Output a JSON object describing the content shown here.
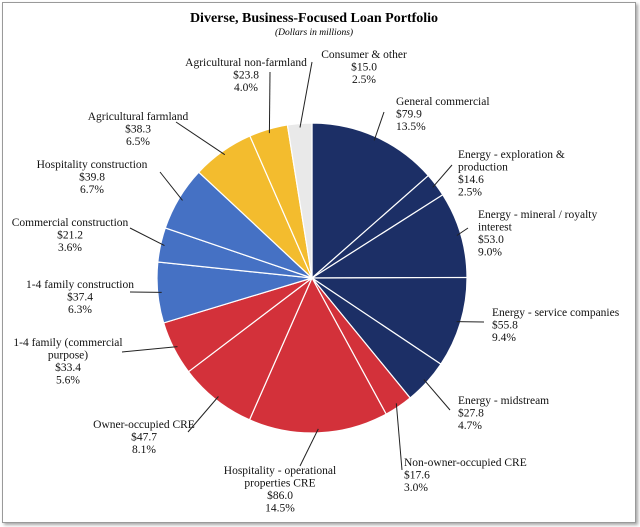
{
  "chart_data": {
    "type": "pie",
    "title": "Diverse, Business-Focused Loan Portfolio",
    "subtitle": "(Dollars in millions)",
    "slices": [
      {
        "label": [
          "General commercial"
        ],
        "value": 79.9,
        "value_text": "$79.9",
        "percent_text": "13.5%",
        "color": "#1c2f66"
      },
      {
        "label": [
          "Energy - exploration &",
          "production"
        ],
        "value": 14.6,
        "value_text": "$14.6",
        "percent_text": "2.5%",
        "color": "#1c2f66"
      },
      {
        "label": [
          "Energy - mineral / royalty",
          "interest"
        ],
        "value": 53.0,
        "value_text": "$53.0",
        "percent_text": "9.0%",
        "color": "#1c2f66"
      },
      {
        "label": [
          "Energy - service companies"
        ],
        "value": 55.8,
        "value_text": "$55.8",
        "percent_text": "9.4%",
        "color": "#1c2f66"
      },
      {
        "label": [
          "Energy - midstream"
        ],
        "value": 27.8,
        "value_text": "$27.8",
        "percent_text": "4.7%",
        "color": "#1c2f66"
      },
      {
        "label": [
          "Non-owner-occupied CRE"
        ],
        "value": 17.6,
        "value_text": "$17.6",
        "percent_text": "3.0%",
        "color": "#d3313a"
      },
      {
        "label": [
          "Hospitality - operational",
          "properties CRE"
        ],
        "value": 86.0,
        "value_text": "$86.0",
        "percent_text": "14.5%",
        "color": "#d3313a"
      },
      {
        "label": [
          "Owner-occupied CRE"
        ],
        "value": 47.7,
        "value_text": "$47.7",
        "percent_text": "8.1%",
        "color": "#d3313a"
      },
      {
        "label": [
          "1-4 family (commercial",
          "purpose)"
        ],
        "value": 33.4,
        "value_text": "$33.4",
        "percent_text": "5.6%",
        "color": "#d3313a"
      },
      {
        "label": [
          "1-4 family construction"
        ],
        "value": 37.4,
        "value_text": "$37.4",
        "percent_text": "6.3%",
        "color": "#4571c4"
      },
      {
        "label": [
          "Commercial construction"
        ],
        "value": 21.2,
        "value_text": "$21.2",
        "percent_text": "3.6%",
        "color": "#4571c4"
      },
      {
        "label": [
          "Hospitality construction"
        ],
        "value": 39.8,
        "value_text": "$39.8",
        "percent_text": "6.7%",
        "color": "#4571c4"
      },
      {
        "label": [
          "Agricultural farmland"
        ],
        "value": 38.3,
        "value_text": "$38.3",
        "percent_text": "6.5%",
        "color": "#f3bc2e"
      },
      {
        "label": [
          "Agricultural non-farmland"
        ],
        "value": 23.8,
        "value_text": "$23.8",
        "percent_text": "4.0%",
        "color": "#f3bc2e"
      },
      {
        "label": [
          "Consumer & other"
        ],
        "value": 15.0,
        "value_text": "$15.0",
        "percent_text": "2.5%",
        "color": "#e9e9e9"
      }
    ]
  }
}
